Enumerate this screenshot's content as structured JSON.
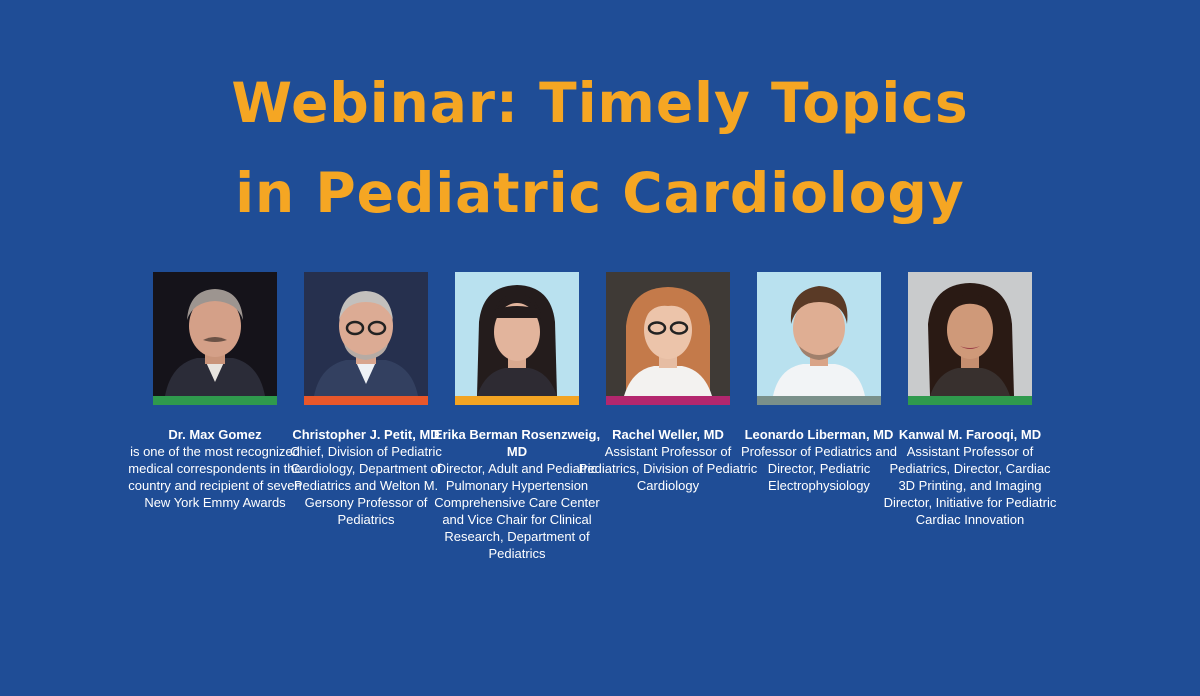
{
  "title": {
    "line1": "Webinar: Timely Topics",
    "line2": "in Pediatric Cardiology"
  },
  "colors": {
    "background": "#1f4d96",
    "title": "#f5a623",
    "stripe_green": "#2f9a4d",
    "stripe_orange": "#e8572a",
    "stripe_yellow": "#f3a423",
    "stripe_magenta": "#b3276e",
    "stripe_gray": "#7a908a"
  },
  "speakers": [
    {
      "name": "Dr. Max Gomez",
      "description": "is one of the most recognized medical correspondents in the country and recipient of seven New York Emmy Awards"
    },
    {
      "name": "Christopher J. Petit, MD",
      "description": "Chief, Division of Pediatric Cardiology, Department of Pediatrics and Welton M. Gersony Professor of Pediatrics"
    },
    {
      "name": "Erika Berman Rosenzweig, MD",
      "description": "Director, Adult and Pediatric Pulmonary Hypertension Comprehensive Care Center and Vice Chair for Clinical Research, Department of Pediatrics"
    },
    {
      "name": "Rachel Weller, MD",
      "description": "Assistant Professor of Pediatrics, Division of Pediatric Cardiology"
    },
    {
      "name": "Leonardo Liberman, MD",
      "description": "Professor of Pediatrics and Director, Pediatric Electrophysiology"
    },
    {
      "name": "Kanwal M. Farooqi, MD",
      "description": "Assistant Professor of Pediatrics, Director, Cardiac 3D Printing, and Imaging Director, Initiative for Pediatric Cardiac Innovation"
    }
  ]
}
